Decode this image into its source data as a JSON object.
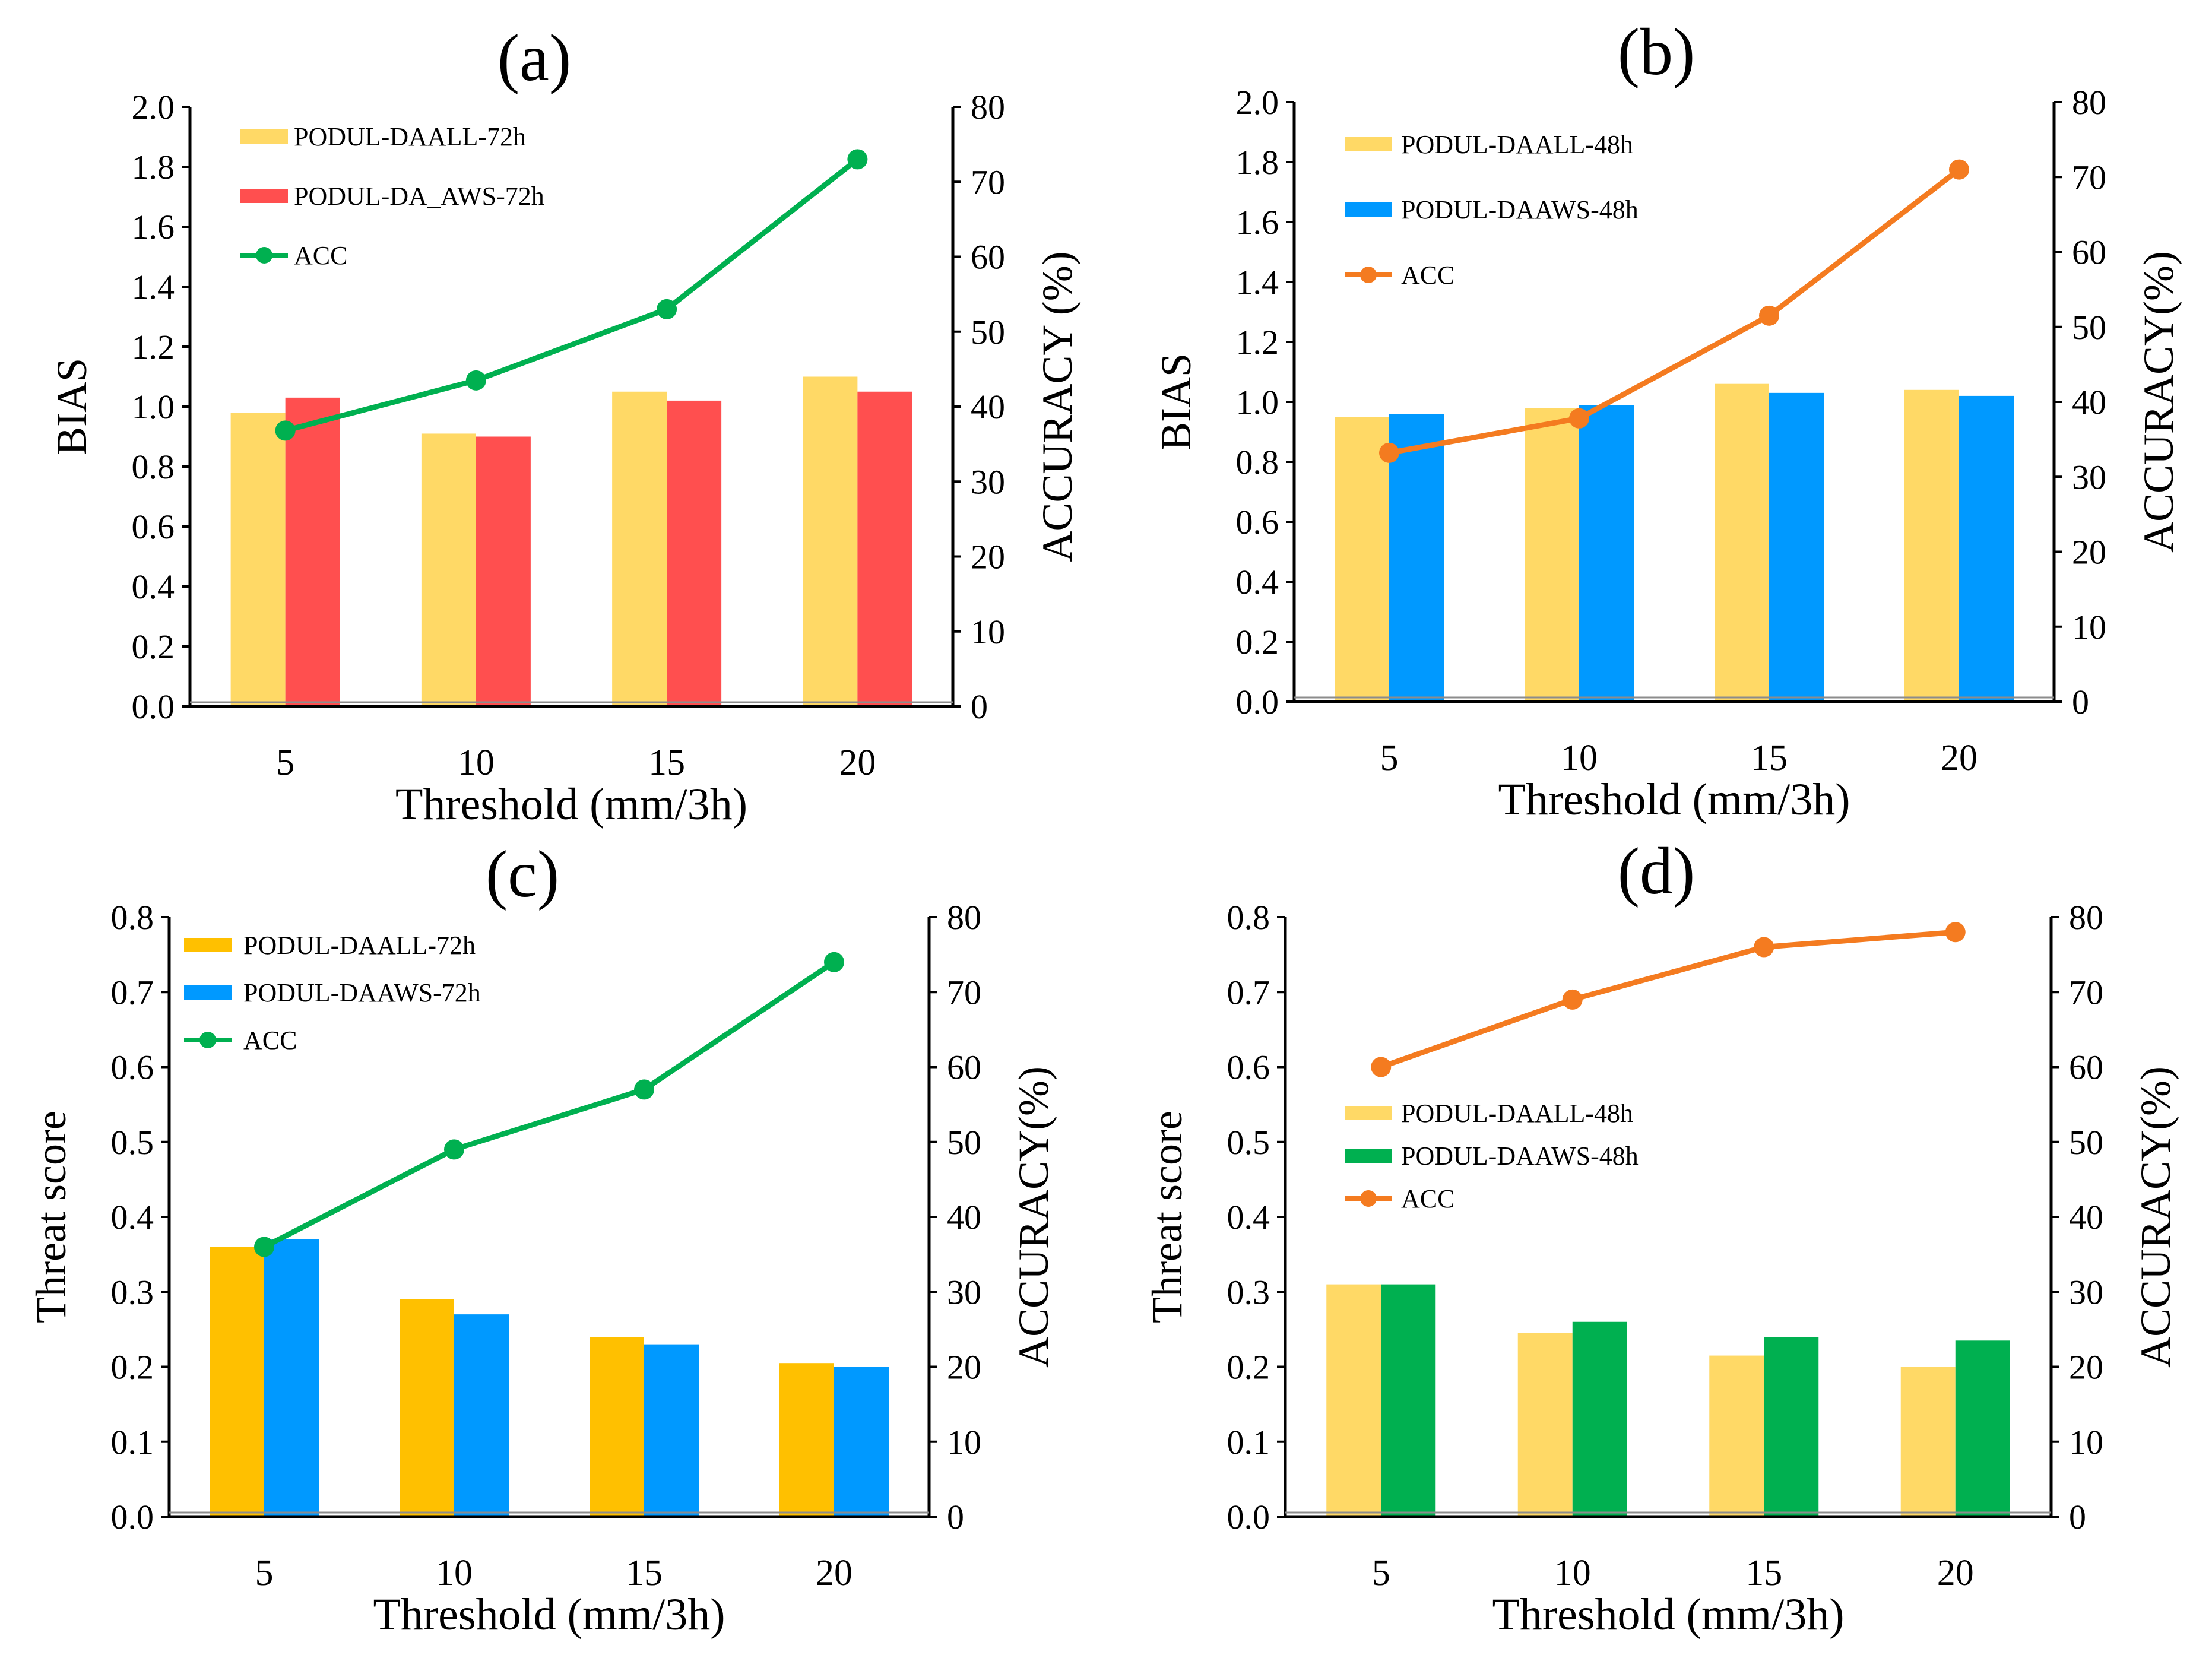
{
  "chart_data": [
    {
      "panel": "(a)",
      "type": "bar",
      "combo": "bar+line",
      "categories": [
        "5",
        "10",
        "15",
        "20"
      ],
      "xlabel": "Threshold (mm/3h)",
      "ylabel": "BIAS",
      "ylabel_right": "ACCURACY (%)",
      "ylim": [
        0,
        2.0
      ],
      "ylim_right": [
        0,
        80
      ],
      "yticks": [
        "0.0",
        "0.2",
        "0.4",
        "0.6",
        "0.8",
        "1.0",
        "1.2",
        "1.4",
        "1.6",
        "1.8",
        "2.0"
      ],
      "yticks_right": [
        "0",
        "10",
        "20",
        "30",
        "40",
        "50",
        "60",
        "70",
        "80"
      ],
      "legend_position": "top-left",
      "series": [
        {
          "name": "PODUL-DAALL-72h",
          "kind": "bar",
          "color": "#FFD966",
          "values": [
            0.98,
            0.91,
            1.05,
            1.1
          ]
        },
        {
          "name": "PODUL-DA_AWS-72h",
          "kind": "bar",
          "color": "#FF4F4F",
          "values": [
            1.03,
            0.9,
            1.02,
            1.05
          ]
        },
        {
          "name": "ACC",
          "kind": "line",
          "axis": "right",
          "color": "#00B050",
          "values": [
            36.8,
            43.5,
            53.0,
            73.0
          ]
        }
      ]
    },
    {
      "panel": "(b)",
      "type": "bar",
      "combo": "bar+line",
      "categories": [
        "5",
        "10",
        "15",
        "20"
      ],
      "xlabel": "Threshold (mm/3h)",
      "ylabel": "BIAS",
      "ylabel_right": "ACCURACY(%)",
      "ylim": [
        0,
        2.0
      ],
      "ylim_right": [
        0,
        80
      ],
      "yticks": [
        "0.0",
        "0.2",
        "0.4",
        "0.6",
        "0.8",
        "1.0",
        "1.2",
        "1.4",
        "1.6",
        "1.8",
        "2.0"
      ],
      "yticks_right": [
        "0",
        "10",
        "20",
        "30",
        "40",
        "50",
        "60",
        "70",
        "80"
      ],
      "legend_position": "top-left",
      "series": [
        {
          "name": "PODUL-DAALL-48h",
          "kind": "bar",
          "color": "#FFD966",
          "values": [
            0.95,
            0.98,
            1.06,
            1.04
          ]
        },
        {
          "name": "PODUL-DAAWS-48h",
          "kind": "bar",
          "color": "#0099FF",
          "values": [
            0.96,
            0.99,
            1.03,
            1.02
          ]
        },
        {
          "name": "ACC",
          "kind": "line",
          "axis": "right",
          "color": "#F47B20",
          "values": [
            33.2,
            37.8,
            51.5,
            71.0
          ]
        }
      ]
    },
    {
      "panel": "(c)",
      "type": "bar",
      "combo": "bar+line",
      "categories": [
        "5",
        "10",
        "15",
        "20"
      ],
      "xlabel": "Threshold (mm/3h)",
      "ylabel": "Threat score",
      "ylabel_right": "ACCURACY(%)",
      "ylim": [
        0,
        0.8
      ],
      "ylim_right": [
        0,
        80
      ],
      "yticks": [
        "0.0",
        "0.1",
        "0.2",
        "0.3",
        "0.4",
        "0.5",
        "0.6",
        "0.7",
        "0.8"
      ],
      "yticks_right": [
        "0",
        "10",
        "20",
        "30",
        "40",
        "50",
        "60",
        "70",
        "80"
      ],
      "legend_position": "top-left",
      "series": [
        {
          "name": "PODUL-DAALL-72h",
          "kind": "bar",
          "color": "#FFC000",
          "values": [
            0.36,
            0.29,
            0.24,
            0.205
          ]
        },
        {
          "name": "PODUL-DAAWS-72h",
          "kind": "bar",
          "color": "#0099FF",
          "values": [
            0.37,
            0.27,
            0.23,
            0.2
          ]
        },
        {
          "name": "ACC",
          "kind": "line",
          "axis": "right",
          "color": "#00B050",
          "values": [
            36,
            49,
            57,
            74
          ]
        }
      ]
    },
    {
      "panel": "(d)",
      "type": "bar",
      "combo": "bar+line",
      "categories": [
        "5",
        "10",
        "15",
        "20"
      ],
      "xlabel": "Threshold (mm/3h)",
      "ylabel": "Threat score",
      "ylabel_right": "ACCURACY(%)",
      "ylim": [
        0,
        0.8
      ],
      "ylim_right": [
        0,
        80
      ],
      "yticks": [
        "0.0",
        "0.1",
        "0.2",
        "0.3",
        "0.4",
        "0.5",
        "0.6",
        "0.7",
        "0.8"
      ],
      "yticks_right": [
        "0",
        "10",
        "20",
        "30",
        "40",
        "50",
        "60",
        "70",
        "80"
      ],
      "legend_position": "center-left",
      "series": [
        {
          "name": "PODUL-DAALL-48h",
          "kind": "bar",
          "color": "#FFD966",
          "values": [
            0.31,
            0.245,
            0.215,
            0.2
          ]
        },
        {
          "name": "PODUL-DAAWS-48h",
          "kind": "bar",
          "color": "#00B050",
          "values": [
            0.31,
            0.26,
            0.24,
            0.235
          ]
        },
        {
          "name": "ACC",
          "kind": "line",
          "axis": "right",
          "color": "#F47B20",
          "values": [
            60,
            69,
            76,
            78
          ]
        }
      ]
    }
  ]
}
